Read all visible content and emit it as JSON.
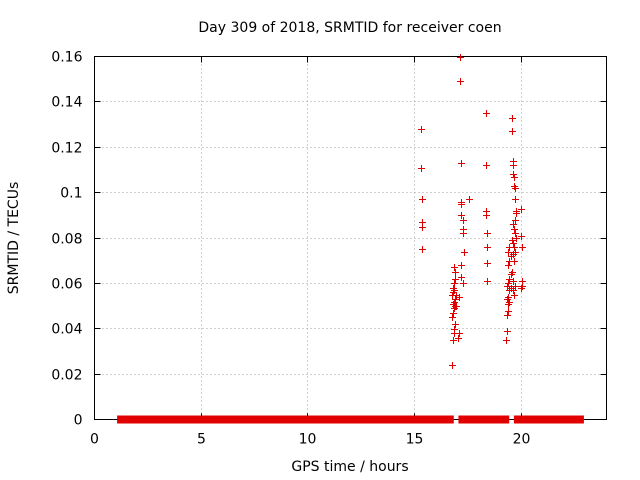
{
  "chart_data": {
    "type": "scatter",
    "title": "Day 309 of 2018, SRMTID for receiver coen",
    "xlabel": "GPS time / hours",
    "ylabel": "SRMTID / TECUs",
    "xlim": [
      0,
      24
    ],
    "ylim": [
      0,
      0.16
    ],
    "xticks": [
      0,
      5,
      10,
      15,
      20
    ],
    "xtick_labels": [
      "0",
      "5",
      "10",
      "15",
      "20"
    ],
    "yticks": [
      0,
      0.02,
      0.04,
      0.06,
      0.08,
      0.1,
      0.12,
      0.14,
      0.16
    ],
    "ytick_labels": [
      "0",
      "0.02",
      "0.04",
      "0.06",
      "0.08",
      "0.1",
      "0.12",
      "0.14",
      "0.16"
    ],
    "grid": true,
    "marker": "+",
    "color": "#e00000",
    "baseline_segments": [
      [
        1.2,
        9.7
      ],
      [
        9.9,
        16.7
      ],
      [
        17.2,
        19.3
      ],
      [
        19.8,
        22.8
      ]
    ],
    "series": [
      {
        "name": "SRMTID",
        "x": [
          15.3,
          15.3,
          15.35,
          15.35,
          15.35,
          15.35,
          16.75,
          16.8,
          16.85,
          16.85,
          16.9,
          16.75,
          16.8,
          16.85,
          16.9,
          16.8,
          16.85,
          16.9,
          16.75,
          16.8,
          16.85,
          16.8,
          16.85,
          16.9,
          16.9,
          16.85,
          16.95,
          16.95,
          17.05,
          17.1,
          17.1,
          17.15,
          17.15,
          17.2,
          17.2,
          17.2,
          17.25,
          17.25,
          17.25,
          17.3,
          17.2,
          17.2,
          17.25,
          17.2,
          17.55,
          18.35,
          18.35,
          18.35,
          18.35,
          18.4,
          18.4,
          18.4,
          18.4,
          19.3,
          19.35,
          19.35,
          19.4,
          19.4,
          19.45,
          19.35,
          19.4,
          19.45,
          19.5,
          19.35,
          19.4,
          19.45,
          19.5,
          19.4,
          19.45,
          19.5,
          19.4,
          19.45,
          19.55,
          19.55,
          19.6,
          19.6,
          19.6,
          19.65,
          19.65,
          19.7,
          19.7,
          19.75,
          19.75,
          19.7,
          19.6,
          19.65,
          19.7,
          19.75,
          19.6,
          19.65,
          19.7,
          19.55,
          19.6,
          19.65,
          19.55,
          19.6,
          19.7,
          19.6,
          19.65,
          20.0,
          20.0,
          20.05,
          20.05,
          20.05,
          20.0
        ],
        "y": [
          0.128,
          0.111,
          0.097,
          0.087,
          0.085,
          0.075,
          0.024,
          0.035,
          0.038,
          0.04,
          0.042,
          0.045,
          0.047,
          0.049,
          0.05,
          0.051,
          0.052,
          0.053,
          0.055,
          0.056,
          0.057,
          0.058,
          0.06,
          0.062,
          0.065,
          0.067,
          0.055,
          0.05,
          0.036,
          0.038,
          0.054,
          0.16,
          0.149,
          0.113,
          0.096,
          0.095,
          0.088,
          0.084,
          0.082,
          0.074,
          0.068,
          0.063,
          0.06,
          0.09,
          0.097,
          0.135,
          0.112,
          0.092,
          0.09,
          0.082,
          0.076,
          0.069,
          0.061,
          0.035,
          0.039,
          0.046,
          0.048,
          0.051,
          0.052,
          0.053,
          0.054,
          0.057,
          0.058,
          0.059,
          0.06,
          0.062,
          0.064,
          0.068,
          0.07,
          0.072,
          0.074,
          0.076,
          0.133,
          0.127,
          0.114,
          0.112,
          0.108,
          0.107,
          0.103,
          0.102,
          0.097,
          0.092,
          0.091,
          0.088,
          0.086,
          0.084,
          0.082,
          0.08,
          0.078,
          0.076,
          0.074,
          0.079,
          0.073,
          0.07,
          0.065,
          0.061,
          0.059,
          0.057,
          0.055,
          0.093,
          0.081,
          0.076,
          0.061,
          0.059,
          0.058
        ]
      }
    ]
  }
}
